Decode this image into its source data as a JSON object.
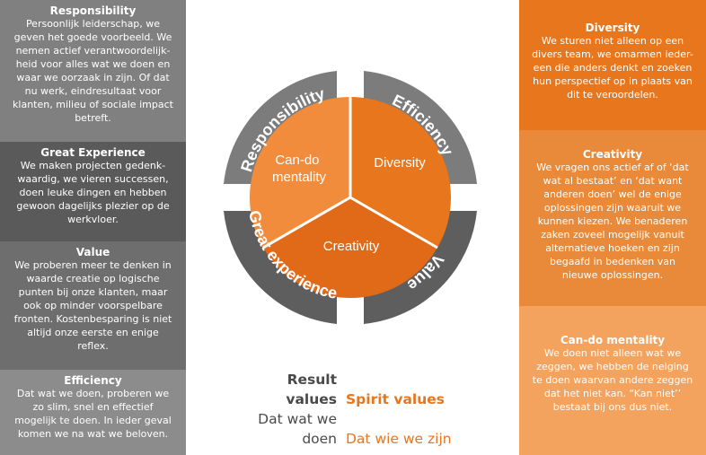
{
  "left_panels": [
    {
      "title": "Responsibility",
      "text": "Persoonlijk leiderschap, we\ngeven het goede voorbeeld. We\nnemen actief verantwoordelijk-\nheid voor alles wat we doen en\nwaar we oorzaak in zijn. Of dat\nnu werk, eindresultaat voor\nklanten, milieu of sociale impact\nbetreft.",
      "color": "#808080"
    },
    {
      "title": "Great Experience",
      "text": "We maken projecten gedenk-\nwaardig, we vieren successen,\ndoen leuke dingen en hebben\ngewoon dagelijks plezier op de\nwerkvloer.",
      "color": "#5a5a5a"
    },
    {
      "title": "Value",
      "text": "We proberen meer te denken in\nwaarde creatie op logische\npunten bij onze klanten, maar\nook op minder voorspelbare\nfronten. Kostenbesparing is niet\naltijd onze eerste en enige\nreflex.",
      "color": "#6e6e6e"
    },
    {
      "title": "Efficiency",
      "text": "Dat wat we doen, proberen we\nzo slim, snel en effectief\nmogelijk te doen. In ieder geval\nkomen we na wat we beloven.",
      "color": "#8c8c8c"
    }
  ],
  "right_panels": [
    {
      "title": "Diversity",
      "text": "We sturen niet alleen op een\ndivers team, we omarmen ieder-\neen die anders denkt en zoeken\nhun perspectief op in plaats van\ndit te veroordelen.",
      "color": "#e8761c"
    },
    {
      "title": "Creativity",
      "text": "We vragen ons actief af of ‘dat\nwat al bestaat’ en ‘dat want\nanderen doen’ wel de enige\noplossingen zijn waaruit we\nkunnen kiezen. We benaderen\nzaken zoveel mogelijk vanuit\nalternatieve hoeken en zijn\nbegaafd in bedenken van\nnieuwe oplossingen.",
      "color": "#e98a3a"
    },
    {
      "title": "Can-do mentality",
      "text": "We doen niet alleen wat we\nzeggen, we hebben de neiging\nte doen waarvan andere zeggen\ndat het niet kan. “Kan niet’’\nbestaat bij ons dus niet.",
      "color": "#f3a35e"
    }
  ],
  "wheel": {
    "outer_labels": [
      "Responsibility",
      "Efficiency",
      "Value",
      "Great experience"
    ],
    "inner_labels": [
      "Can-do mentality",
      "Diversity",
      "Creativity"
    ],
    "colors": {
      "ring": "#6b6b6b",
      "inner_a": "#f08c3c",
      "inner_b": "#e87020",
      "inner_c": "#e06a18"
    }
  },
  "legend": {
    "result_title": "Result values",
    "spirit_title": "Spirit values",
    "result_sub": "Dat wat we doen",
    "spirit_sub": "Dat wie we zijn",
    "result_color": "#4a4a4a",
    "spirit_color": "#e8761c"
  }
}
